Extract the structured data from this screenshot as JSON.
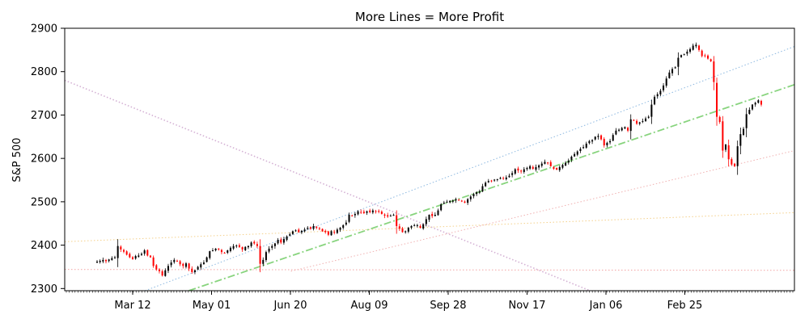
{
  "chart_data": {
    "type": "candlestick",
    "title": "More Lines = More Profit",
    "xlabel": "",
    "ylabel": "S&P 500",
    "ylim": [
      2295,
      2900
    ],
    "yticks": [
      2300,
      2400,
      2500,
      2600,
      2700,
      2800,
      2900
    ],
    "xticks": [
      "Mar 12",
      "May 01",
      "Jun 20",
      "Aug 09",
      "Sep 28",
      "Nov 17",
      "Jan 06",
      "Feb 25"
    ],
    "grid": false,
    "legend": "none",
    "colors": {
      "up": "#000000",
      "down": "#ff0000"
    },
    "series": [
      {
        "values": [
          2362,
          2364,
          2366,
          2363,
          2367,
          2370,
          2372,
          2398,
          2390,
          2385,
          2378,
          2372,
          2368,
          2375,
          2376,
          2380,
          2388,
          2376,
          2372,
          2352,
          2344,
          2340,
          2330,
          2342,
          2352,
          2360,
          2366,
          2364,
          2356,
          2352,
          2358,
          2346,
          2338,
          2342,
          2350,
          2356,
          2360,
          2372,
          2386,
          2388,
          2392,
          2390,
          2384,
          2382,
          2388,
          2394,
          2398,
          2399,
          2396,
          2390,
          2396,
          2398,
          2406,
          2404,
          2398,
          2357,
          2366,
          2384,
          2392,
          2398,
          2404,
          2412,
          2406,
          2414,
          2420,
          2425,
          2432,
          2434,
          2430,
          2433,
          2436,
          2440,
          2438,
          2444,
          2440,
          2438,
          2432,
          2430,
          2424,
          2432,
          2430,
          2436,
          2440,
          2446,
          2452,
          2470,
          2468,
          2472,
          2478,
          2476,
          2474,
          2478,
          2476,
          2480,
          2478,
          2477,
          2472,
          2468,
          2466,
          2468,
          2470,
          2444,
          2438,
          2430,
          2432,
          2440,
          2444,
          2446,
          2446,
          2440,
          2448,
          2460,
          2470,
          2467,
          2470,
          2480,
          2494,
          2498,
          2500,
          2502,
          2503,
          2506,
          2504,
          2502,
          2498,
          2506,
          2512,
          2518,
          2522,
          2524,
          2536,
          2544,
          2548,
          2548,
          2551,
          2552,
          2555,
          2554,
          2556,
          2560,
          2566,
          2575,
          2572,
          2570,
          2575,
          2578,
          2582,
          2576,
          2580,
          2584,
          2588,
          2592,
          2590,
          2582,
          2576,
          2574,
          2580,
          2585,
          2590,
          2595,
          2604,
          2610,
          2616,
          2622,
          2626,
          2634,
          2640,
          2642,
          2650,
          2652,
          2644,
          2630,
          2636,
          2640,
          2654,
          2664,
          2666,
          2670,
          2672,
          2664,
          2690,
          2688,
          2680,
          2683,
          2686,
          2692,
          2696,
          2724,
          2742,
          2748,
          2756,
          2768,
          2784,
          2798,
          2806,
          2810,
          2832,
          2838,
          2840,
          2846,
          2852,
          2860,
          2862,
          2850,
          2836,
          2836,
          2830,
          2824,
          2776,
          2696,
          2684,
          2618,
          2632,
          2598,
          2586,
          2582,
          2628,
          2656,
          2668,
          2702,
          2712,
          2724,
          2728,
          2734,
          2724
        ]
      }
    ],
    "lines": [
      {
        "from": [
          0.0,
          2344
        ],
        "to": [
          1.0,
          2342
        ],
        "color": "#f2a3a3",
        "style": "dotted",
        "width": 1
      },
      {
        "from": [
          0.0,
          2408
        ],
        "to": [
          1.0,
          2475
        ],
        "color": "#f4d08a",
        "style": "dotted",
        "width": 1
      },
      {
        "from": [
          0.0,
          2780
        ],
        "to": [
          0.72,
          2295
        ],
        "color": "#d4b1d4",
        "style": "dotted",
        "width": 1.6
      },
      {
        "from": [
          0.11,
          2295
        ],
        "to": [
          1.0,
          2858
        ],
        "color": "#8cb8e0",
        "style": "dotted",
        "width": 1
      },
      {
        "from": [
          0.17,
          2295
        ],
        "to": [
          1.0,
          2770
        ],
        "color": "#88d47e",
        "style": "dashdot",
        "width": 1.8
      },
      {
        "from": [
          0.31,
          2340
        ],
        "to": [
          1.0,
          2618
        ],
        "color": "#f0b0b0",
        "style": "dotted",
        "width": 1
      }
    ]
  }
}
